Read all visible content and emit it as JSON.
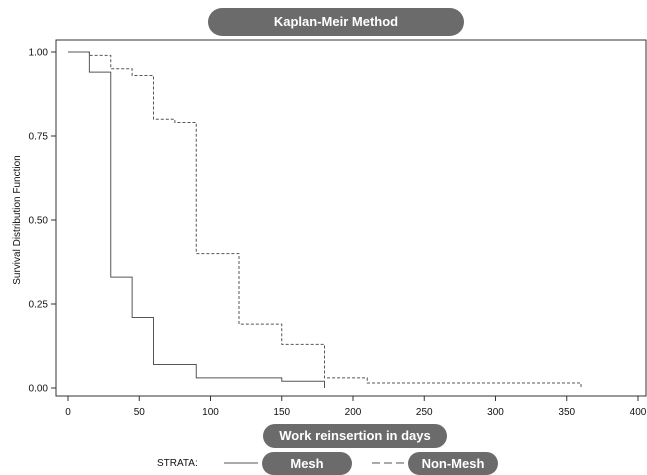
{
  "chart_data": {
    "type": "line",
    "title": "Kaplan-Meir Method",
    "xlabel": "Work reinsertion in days",
    "ylabel": "Survival Distribution Function",
    "xlim": [
      0,
      400
    ],
    "ylim": [
      0,
      1
    ],
    "xticks": [
      "0",
      "50",
      "100",
      "150",
      "200",
      "250",
      "300",
      "350",
      "400"
    ],
    "yticks": [
      "0.00",
      "0.25",
      "0.50",
      "0.75",
      "1.00"
    ],
    "grid": false,
    "legend_title": "STRATA:",
    "step": true,
    "series": [
      {
        "name": "Mesh",
        "dash": "solid",
        "color": "#555555",
        "x": [
          0,
          15,
          30,
          45,
          60,
          90,
          150,
          180
        ],
        "y": [
          1.0,
          0.94,
          0.33,
          0.21,
          0.07,
          0.03,
          0.02,
          0.0
        ]
      },
      {
        "name": "Non-Mesh",
        "dash": "dashed",
        "color": "#555555",
        "x": [
          0,
          15,
          30,
          45,
          60,
          75,
          90,
          120,
          150,
          180,
          210,
          360
        ],
        "y": [
          1.0,
          0.99,
          0.95,
          0.93,
          0.8,
          0.79,
          0.4,
          0.19,
          0.13,
          0.03,
          0.015,
          0.0
        ]
      }
    ]
  }
}
